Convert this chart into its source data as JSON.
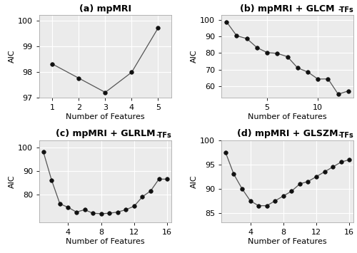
{
  "subplots": [
    {
      "title_main": "(a) mpMRI",
      "title_sub": null,
      "x": [
        1,
        2,
        3,
        4,
        5
      ],
      "y": [
        98.3,
        97.75,
        97.2,
        97.98,
        99.7
      ],
      "xlabel": "Number of Features",
      "ylabel": "AIC",
      "xlim": [
        0.5,
        5.5
      ],
      "ylim": [
        97.0,
        100.2
      ],
      "xticks": [
        1,
        2,
        3,
        4,
        5
      ],
      "yticks": [
        97,
        98,
        99,
        100
      ]
    },
    {
      "title_main": "(b) mpMRI + GLCM",
      "title_sub": "-TFs",
      "x": [
        1,
        2,
        3,
        4,
        5,
        6,
        7,
        8,
        9,
        10,
        11,
        12,
        13
      ],
      "y": [
        99.0,
        90.5,
        88.8,
        83.3,
        80.3,
        79.8,
        77.8,
        71.0,
        68.5,
        64.2,
        64.3,
        55.0,
        57.0
      ],
      "xlabel": "Number of Features",
      "ylabel": "AIC",
      "xlim": [
        0.5,
        13.5
      ],
      "ylim": [
        53,
        103
      ],
      "xticks": [
        5,
        10
      ],
      "yticks": [
        60,
        70,
        80,
        90,
        100
      ]
    },
    {
      "title_main": "(c) mpMRI + GLRLM",
      "title_sub": "-TFs",
      "x": [
        1,
        2,
        3,
        4,
        5,
        6,
        7,
        8,
        9,
        10,
        11,
        12,
        13,
        14,
        15,
        16
      ],
      "y": [
        98.0,
        86.0,
        76.0,
        74.5,
        72.5,
        73.5,
        72.0,
        71.8,
        72.0,
        72.5,
        73.5,
        75.0,
        79.0,
        81.5,
        86.5,
        86.5
      ],
      "xlabel": "Number of Features",
      "ylabel": "AIC",
      "xlim": [
        0.5,
        16.5
      ],
      "ylim": [
        68,
        103
      ],
      "xticks": [
        4,
        8,
        12,
        16
      ],
      "yticks": [
        80,
        90,
        100
      ]
    },
    {
      "title_main": "(d) mpMRI + GLSZM",
      "title_sub": "-TFs",
      "x": [
        1,
        2,
        3,
        4,
        5,
        6,
        7,
        8,
        9,
        10,
        11,
        12,
        13,
        14,
        15,
        16
      ],
      "y": [
        97.5,
        93.0,
        90.0,
        87.5,
        86.5,
        86.5,
        87.5,
        88.5,
        89.5,
        91.0,
        91.5,
        92.5,
        93.5,
        94.5,
        95.5,
        96.0
      ],
      "xlabel": "Number of Features",
      "ylabel": "AIC",
      "xlim": [
        0.5,
        16.5
      ],
      "ylim": [
        83,
        100
      ],
      "xticks": [
        4,
        8,
        12,
        16
      ],
      "yticks": [
        85,
        90,
        95,
        100
      ]
    }
  ],
  "line_color": "#555555",
  "marker_color": "#111111",
  "marker_size": 4,
  "bg_color": "#ebebeb",
  "grid_color": "#ffffff",
  "title_fontsize": 9,
  "title_sub_fontsize": 7,
  "label_fontsize": 8,
  "tick_fontsize": 8
}
